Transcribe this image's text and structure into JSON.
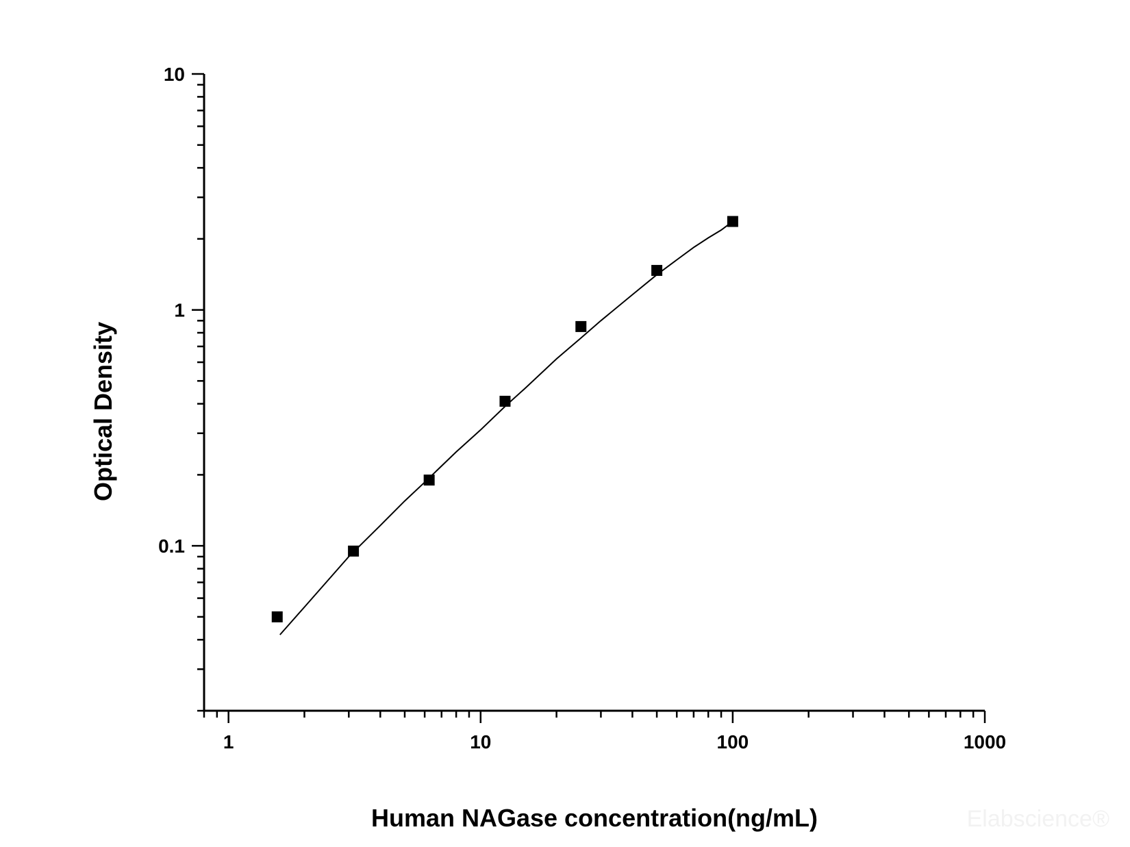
{
  "chart_data": {
    "type": "scatter",
    "title": "",
    "xlabel": "Human NAGase concentration(ng/mL)",
    "ylabel": "Optical Density",
    "x_scale": "log",
    "y_scale": "log",
    "xlim": [
      0.8,
      1000
    ],
    "ylim": [
      0.02,
      10
    ],
    "x_ticks": [
      {
        "value": 1,
        "label": "1"
      },
      {
        "value": 10,
        "label": "10"
      },
      {
        "value": 100,
        "label": "100"
      },
      {
        "value": 1000,
        "label": "1000"
      }
    ],
    "y_ticks": [
      {
        "value": 0.1,
        "label": "0.1"
      },
      {
        "value": 1,
        "label": "1"
      },
      {
        "value": 10,
        "label": "10"
      }
    ],
    "grid": false,
    "legend": "none",
    "series": [
      {
        "kind": "points",
        "marker": "square",
        "color": "#000000",
        "x": [
          1.56,
          3.13,
          6.25,
          12.5,
          25,
          50,
          100
        ],
        "y": [
          0.05,
          0.095,
          0.19,
          0.41,
          0.85,
          1.47,
          2.37
        ]
      },
      {
        "kind": "fit-curve",
        "color": "#000000",
        "x": [
          1.6,
          2,
          3,
          4,
          5,
          6,
          8,
          10,
          12.5,
          15,
          20,
          25,
          30,
          40,
          50,
          60,
          70,
          80,
          90,
          100
        ],
        "y": [
          0.042,
          0.055,
          0.09,
          0.122,
          0.155,
          0.186,
          0.25,
          0.31,
          0.39,
          0.465,
          0.62,
          0.76,
          0.9,
          1.16,
          1.41,
          1.63,
          1.84,
          2.02,
          2.18,
          2.37
        ]
      }
    ]
  },
  "watermark": {
    "text": "Elabscience®"
  }
}
